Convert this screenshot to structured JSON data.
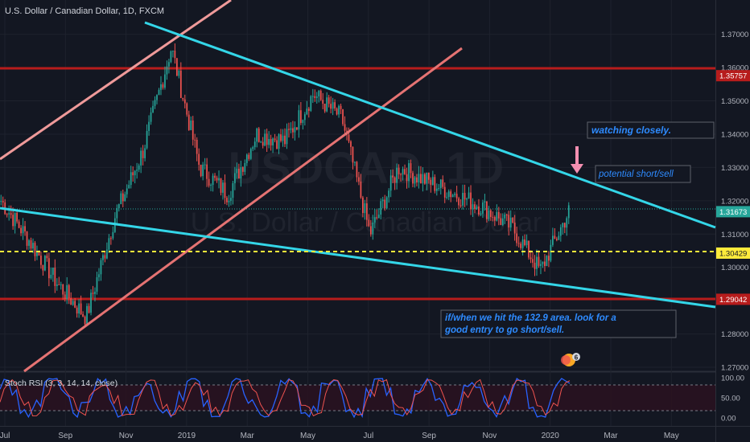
{
  "header": {
    "symbol_title": "U.S. Dollar / Canadian Dollar, 1D, FXCM"
  },
  "watermark": {
    "symbol": "USDCAD, 1D",
    "name": "U.S. Dollar / Canadian Dollar"
  },
  "colors": {
    "background": "#131722",
    "up": "#26a69a",
    "down": "#ef5350",
    "channel_line": "#ef9a9a",
    "wedge_line": "#34d6e8",
    "horizontal_level": "#b71c1c",
    "dashed_level": "#ffeb3b",
    "rsi_k": "#2962ff",
    "rsi_d": "#ef5350"
  },
  "price_axis": {
    "ticks": [
      "1.37000",
      "1.36000",
      "1.35000",
      "1.34000",
      "1.33000",
      "1.32000",
      "1.31000",
      "1.30000",
      "1.28000",
      "1.27000"
    ],
    "labels": [
      {
        "value": "1.35757",
        "bg": "#b71c1c"
      },
      {
        "value": "1.31673",
        "bg": "#26a69a"
      },
      {
        "value": "1.30429",
        "bg": "#ffeb3b"
      },
      {
        "value": "1.29042",
        "bg": "#b71c1c"
      }
    ]
  },
  "time_axis": {
    "ticks": [
      "Jul",
      "Sep",
      "Nov",
      "2019",
      "Mar",
      "May",
      "Jul",
      "Sep",
      "Nov",
      "2020",
      "Mar",
      "May"
    ]
  },
  "annotations": {
    "watching": "watching closely.",
    "short": "potential short/sell",
    "entry_line1": "if/when we hit the 132.9 area. look for a",
    "entry_line2": "good entry to go short/sell.",
    "badge": "6"
  },
  "indicator": {
    "title": "Stoch RSI (3, 3, 14, 14, close)",
    "ticks": [
      "100.00",
      "50.00",
      "0.00"
    ]
  },
  "chart_data": {
    "type": "candlestick",
    "title": "U.S. Dollar / Canadian Dollar, 1D, FXCM",
    "price_range": [
      1.2688,
      1.3803
    ],
    "x": [
      "Jul",
      "Sep",
      "Nov",
      "2019",
      "Mar",
      "May",
      "Jul",
      "Sep",
      "Nov",
      "2020",
      "Mar",
      "May"
    ],
    "close_path": [
      [
        "Jul",
        1.32
      ],
      [
        "Aug",
        1.308
      ],
      [
        "Sep",
        1.295
      ],
      [
        "Oct",
        1.285
      ],
      [
        "Nov",
        1.315
      ],
      [
        "Dec",
        1.335
      ],
      [
        "2019",
        1.366
      ],
      [
        "Jan",
        1.33
      ],
      [
        "Feb",
        1.322
      ],
      [
        "Mar",
        1.34
      ],
      [
        "Apr",
        1.338
      ],
      [
        "May",
        1.352
      ],
      [
        "Jun",
        1.345
      ],
      [
        "Jul",
        1.31
      ],
      [
        "Aug",
        1.33
      ],
      [
        "Sep",
        1.326
      ],
      [
        "Oct",
        1.322
      ],
      [
        "Nov",
        1.318
      ],
      [
        "Dec",
        1.312
      ],
      [
        "2020",
        1.299
      ],
      [
        "Jan",
        1.3167
      ]
    ],
    "levels": [
      1.35757,
      1.31673,
      1.30429,
      1.29042
    ],
    "stoch_rsi_range": [
      0,
      100
    ]
  }
}
